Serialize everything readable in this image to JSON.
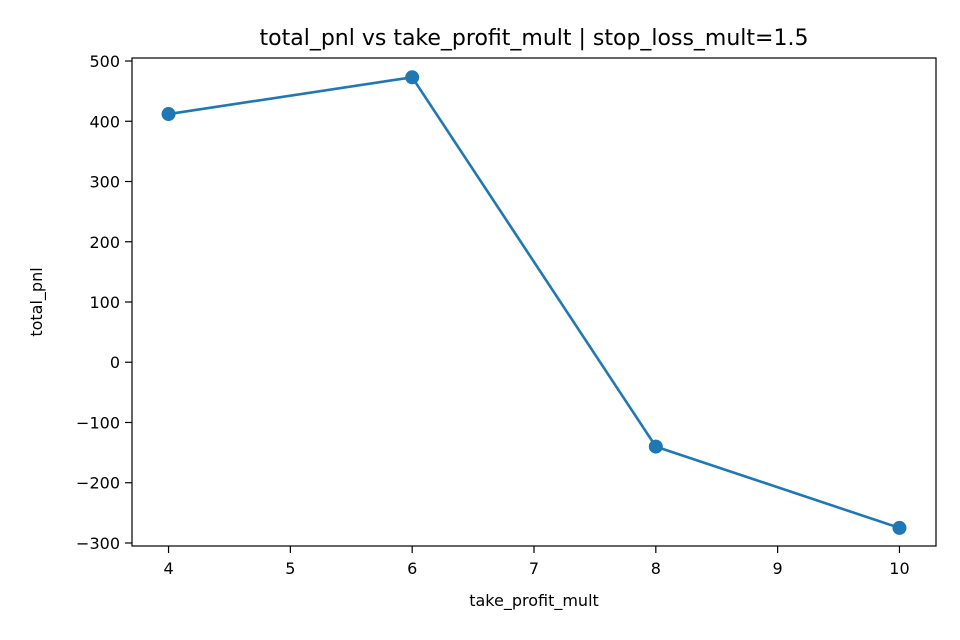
{
  "chart_data": {
    "type": "line",
    "title": "total_pnl vs take_profit_mult | stop_loss_mult=1.5",
    "xlabel": "take_profit_mult",
    "ylabel": "total_pnl",
    "x": [
      4,
      6,
      8,
      10
    ],
    "series": [
      {
        "values": [
          412,
          473,
          -140,
          -275
        ],
        "color": "#1f77b4",
        "marker": "circle"
      }
    ],
    "xlim": [
      3.7,
      10.3
    ],
    "ylim": [
      -305,
      505
    ],
    "xticks": [
      4,
      5,
      6,
      7,
      8,
      9,
      10
    ],
    "xtick_labels": [
      "4",
      "5",
      "6",
      "7",
      "8",
      "9",
      "10"
    ],
    "yticks": [
      500,
      400,
      300,
      200,
      100,
      0,
      -100,
      -200,
      -300
    ],
    "ytick_labels": [
      "500",
      "400",
      "300",
      "200",
      "100",
      "0",
      "−100",
      "−200",
      "−300"
    ],
    "grid": false
  }
}
